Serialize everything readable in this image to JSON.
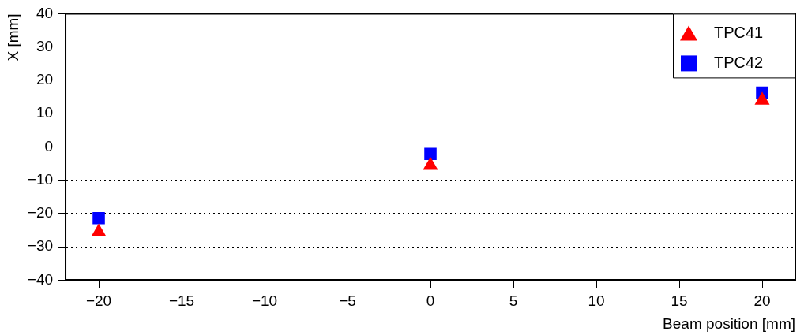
{
  "chart_data": {
    "type": "scatter",
    "xlabel": "Beam position [mm]",
    "ylabel": "X [mm]",
    "x": [
      -20,
      0,
      20
    ],
    "series": [
      {
        "name": "TPC41",
        "color": "#ff0000",
        "marker": "triangle",
        "values": [
          -25.6,
          -5.6,
          14
        ]
      },
      {
        "name": "TPC42",
        "color": "#0000ff",
        "marker": "square",
        "values": [
          -21.4,
          -2.1,
          16.3
        ]
      }
    ],
    "xlim": [
      -22,
      22
    ],
    "xticks": [
      -20,
      -15,
      -10,
      -5,
      0,
      5,
      10,
      15,
      20
    ],
    "ylim": [
      -40,
      40
    ],
    "yticks": [
      -40,
      -30,
      -20,
      -10,
      0,
      10,
      20,
      30,
      40
    ],
    "grid": "y",
    "legend": "top right"
  }
}
